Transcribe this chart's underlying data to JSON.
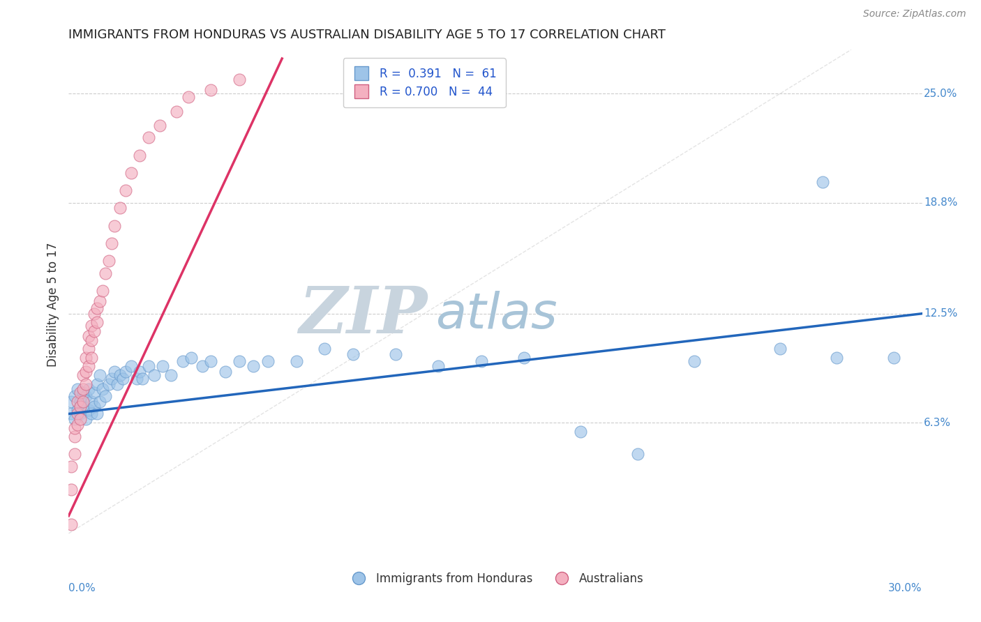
{
  "title": "IMMIGRANTS FROM HONDURAS VS AUSTRALIAN DISABILITY AGE 5 TO 17 CORRELATION CHART",
  "source": "Source: ZipAtlas.com",
  "ylabel": "Disability Age 5 to 17",
  "xlim": [
    0.0,
    0.3
  ],
  "ylim": [
    -0.015,
    0.275
  ],
  "ytick_vals": [
    0.063,
    0.125,
    0.188,
    0.25
  ],
  "ytick_labels": [
    "6.3%",
    "12.5%",
    "18.8%",
    "25.0%"
  ],
  "series_blue": {
    "color": "#9ec4e8",
    "edgecolor": "#6699cc",
    "x": [
      0.001,
      0.001,
      0.002,
      0.002,
      0.003,
      0.003,
      0.004,
      0.004,
      0.005,
      0.005,
      0.006,
      0.006,
      0.007,
      0.007,
      0.008,
      0.008,
      0.009,
      0.009,
      0.01,
      0.01,
      0.011,
      0.011,
      0.012,
      0.013,
      0.014,
      0.015,
      0.016,
      0.017,
      0.018,
      0.019,
      0.02,
      0.022,
      0.024,
      0.025,
      0.026,
      0.028,
      0.03,
      0.033,
      0.036,
      0.04,
      0.043,
      0.047,
      0.05,
      0.055,
      0.06,
      0.065,
      0.07,
      0.08,
      0.09,
      0.1,
      0.115,
      0.13,
      0.145,
      0.16,
      0.18,
      0.2,
      0.22,
      0.25,
      0.265,
      0.27,
      0.29
    ],
    "y": [
      0.068,
      0.075,
      0.065,
      0.078,
      0.07,
      0.082,
      0.068,
      0.075,
      0.072,
      0.08,
      0.065,
      0.078,
      0.07,
      0.082,
      0.068,
      0.075,
      0.072,
      0.08,
      0.068,
      0.085,
      0.075,
      0.09,
      0.082,
      0.078,
      0.085,
      0.088,
      0.092,
      0.085,
      0.09,
      0.088,
      0.092,
      0.095,
      0.088,
      0.092,
      0.088,
      0.095,
      0.09,
      0.095,
      0.09,
      0.098,
      0.1,
      0.095,
      0.098,
      0.092,
      0.098,
      0.095,
      0.098,
      0.098,
      0.105,
      0.102,
      0.102,
      0.095,
      0.098,
      0.1,
      0.058,
      0.045,
      0.098,
      0.105,
      0.2,
      0.1,
      0.1
    ]
  },
  "series_pink": {
    "color": "#f4b0c0",
    "edgecolor": "#d06080",
    "x": [
      0.001,
      0.001,
      0.001,
      0.002,
      0.002,
      0.002,
      0.003,
      0.003,
      0.003,
      0.004,
      0.004,
      0.004,
      0.005,
      0.005,
      0.005,
      0.006,
      0.006,
      0.006,
      0.007,
      0.007,
      0.007,
      0.008,
      0.008,
      0.008,
      0.009,
      0.009,
      0.01,
      0.01,
      0.011,
      0.012,
      0.013,
      0.014,
      0.015,
      0.016,
      0.018,
      0.02,
      0.022,
      0.025,
      0.028,
      0.032,
      0.038,
      0.042,
      0.05,
      0.06
    ],
    "y": [
      0.005,
      0.025,
      0.038,
      0.045,
      0.055,
      0.06,
      0.062,
      0.068,
      0.075,
      0.065,
      0.072,
      0.08,
      0.075,
      0.082,
      0.09,
      0.085,
      0.092,
      0.1,
      0.095,
      0.105,
      0.112,
      0.1,
      0.11,
      0.118,
      0.115,
      0.125,
      0.12,
      0.128,
      0.132,
      0.138,
      0.148,
      0.155,
      0.165,
      0.175,
      0.185,
      0.195,
      0.205,
      0.215,
      0.225,
      0.232,
      0.24,
      0.248,
      0.252,
      0.258
    ]
  },
  "blue_line": {
    "color": "#2266bb",
    "x_start": 0.0,
    "y_start": 0.068,
    "x_end": 0.3,
    "y_end": 0.125
  },
  "pink_line": {
    "color": "#dd3366",
    "x_start": 0.0,
    "y_start": 0.01,
    "x_end": 0.075,
    "y_end": 0.27
  },
  "diagonal_line": {
    "color": "#dddddd",
    "style": "--",
    "x_start": 0.0,
    "y_start": 0.0,
    "x_end": 0.275,
    "y_end": 0.275
  },
  "watermark_zip": "ZIP",
  "watermark_atlas": "atlas",
  "watermark_color_zip": "#c8d4de",
  "watermark_color_atlas": "#a8c4d8",
  "background_color": "#ffffff",
  "grid_color": "#cccccc"
}
